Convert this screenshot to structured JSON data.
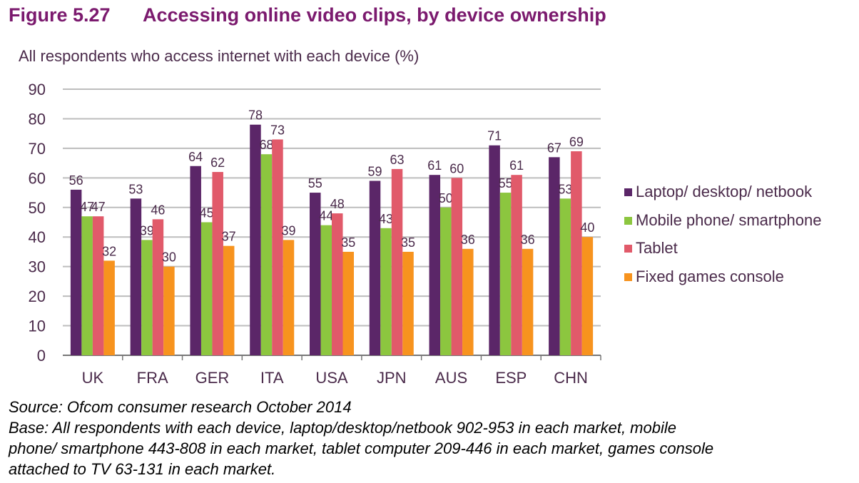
{
  "figure": {
    "number": "Figure 5.27",
    "title": "Accessing online video clips, by device ownership"
  },
  "chart_data": {
    "type": "bar",
    "title": "Accessing online video clips, by device ownership",
    "subtitle": "All respondents who access internet with each device (%)",
    "categories": [
      "UK",
      "FRA",
      "GER",
      "ITA",
      "USA",
      "JPN",
      "AUS",
      "ESP",
      "CHN"
    ],
    "series": [
      {
        "name": "Laptop/ desktop/ netbook",
        "color": "#5b2668",
        "values": [
          56,
          53,
          64,
          78,
          55,
          59,
          61,
          71,
          67
        ]
      },
      {
        "name": "Mobile phone/ smartphone",
        "color": "#8cc63f",
        "values": [
          47,
          39,
          45,
          68,
          44,
          43,
          50,
          55,
          53
        ]
      },
      {
        "name": "Tablet",
        "color": "#e15a6a",
        "values": [
          47,
          46,
          62,
          73,
          48,
          63,
          60,
          61,
          69
        ]
      },
      {
        "name": "Fixed games console",
        "color": "#f7931e",
        "values": [
          32,
          30,
          37,
          39,
          35,
          35,
          36,
          36,
          40
        ]
      }
    ],
    "ylim": [
      0,
      90
    ],
    "yticks": [
      0,
      10,
      20,
      30,
      40,
      50,
      60,
      70,
      80,
      90
    ],
    "grid": true,
    "legend_position": "right",
    "data_labels": true
  },
  "footer": {
    "source": "Source: Ofcom consumer research October 2014",
    "base_lines": [
      "Base: All respondents with each device, laptop/desktop/netbook 902-953 in each market, mobile",
      "phone/ smartphone 443-808 in each market, tablet computer 209-446 in each market, games console",
      "attached to TV 63-131 in each market."
    ]
  }
}
